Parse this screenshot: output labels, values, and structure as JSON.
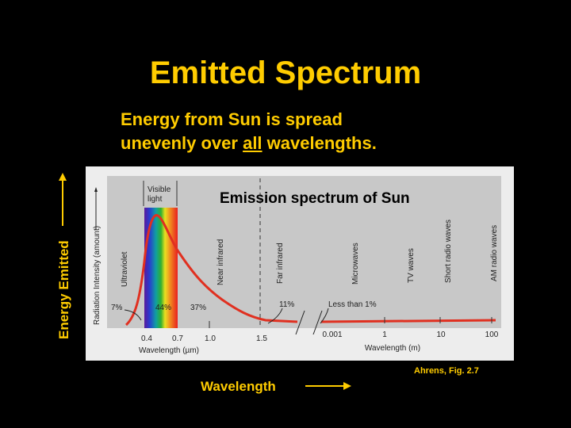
{
  "slide": {
    "title": "Emitted Spectrum",
    "subtitle_line1": "Energy from Sun is spread",
    "subtitle_line2_pre": "unevenly over ",
    "subtitle_line2_em": "all",
    "subtitle_line2_post": " wavelengths.",
    "y_axis_label": "Energy Emitted",
    "x_axis_label": "Wavelength",
    "credit": "Ahrens, Fig. 2.7"
  },
  "figure": {
    "title": "Emission spectrum of Sun",
    "y_label": "Radiation Intensity (amount)",
    "visible_label_1": "Visible",
    "visible_label_2": "light",
    "x_label_um": "Wavelength (µm)",
    "x_label_m": "Wavelength (m)",
    "ticks_um": [
      "0.4",
      "0.7",
      "1.0",
      "1.5"
    ],
    "ticks_m": [
      "0.001",
      "1",
      "10",
      "100"
    ],
    "regions": [
      "Ultraviolet",
      "Near infrared",
      "Far infrared",
      "Microwaves",
      "TV waves",
      "Short radio waves",
      "AM radio waves"
    ],
    "percentages": {
      "ultraviolet": "7%",
      "visible": "44%",
      "near_infrared": "37%",
      "far_infrared": "11%",
      "rest": "Less than 1%"
    },
    "colors": {
      "curve": "#E03020",
      "panel": "#C8C8C8",
      "text": "#FFCC00"
    }
  }
}
